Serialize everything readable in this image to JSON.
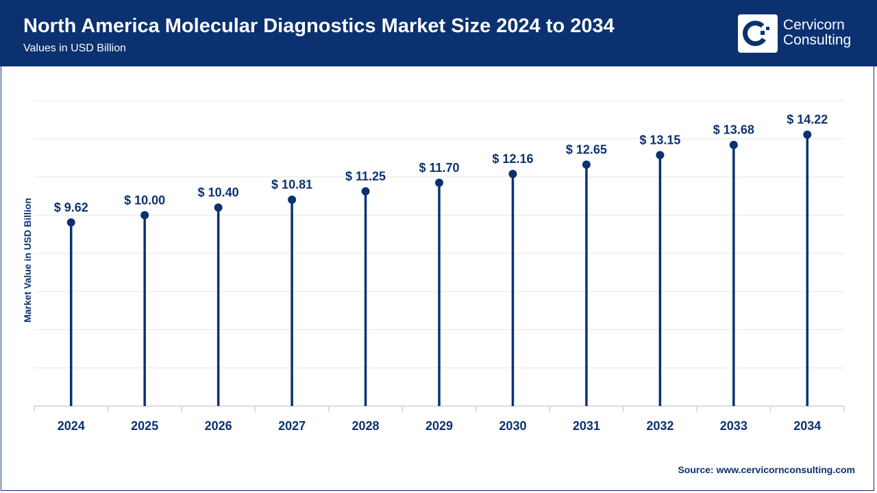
{
  "header": {
    "title": "North America Molecular Diagnostics Market Size 2024 to 2034",
    "subtitle": "Values in USD Billion"
  },
  "logo": {
    "line1": "Cervicorn",
    "line2": "Consulting"
  },
  "source": "Source: www.cervicornconsulting.com",
  "colors": {
    "brand": "#0b3170",
    "grid": "#e6e6e6"
  },
  "chart_data": {
    "type": "lollipop",
    "title": "North America Molecular Diagnostics Market Size 2024 to 2034",
    "subtitle": "Values in USD Billion",
    "xlabel": "",
    "ylabel": "Market Value in USD Billion",
    "categories": [
      "2024",
      "2025",
      "2026",
      "2027",
      "2028",
      "2029",
      "2030",
      "2031",
      "2032",
      "2033",
      "2034"
    ],
    "values": [
      9.62,
      10.0,
      10.4,
      10.81,
      11.25,
      11.7,
      12.16,
      12.65,
      13.15,
      13.68,
      14.22
    ],
    "data_labels": [
      "$ 9.62",
      "$ 10.00",
      "$ 10.40",
      "$ 10.81",
      "$ 11.25",
      "$ 11.70",
      "$ 12.16",
      "$ 12.65",
      "$ 13.15",
      "$ 13.68",
      "$ 14.22"
    ],
    "ylim": [
      0,
      16
    ],
    "grid": true,
    "legend": "none"
  }
}
